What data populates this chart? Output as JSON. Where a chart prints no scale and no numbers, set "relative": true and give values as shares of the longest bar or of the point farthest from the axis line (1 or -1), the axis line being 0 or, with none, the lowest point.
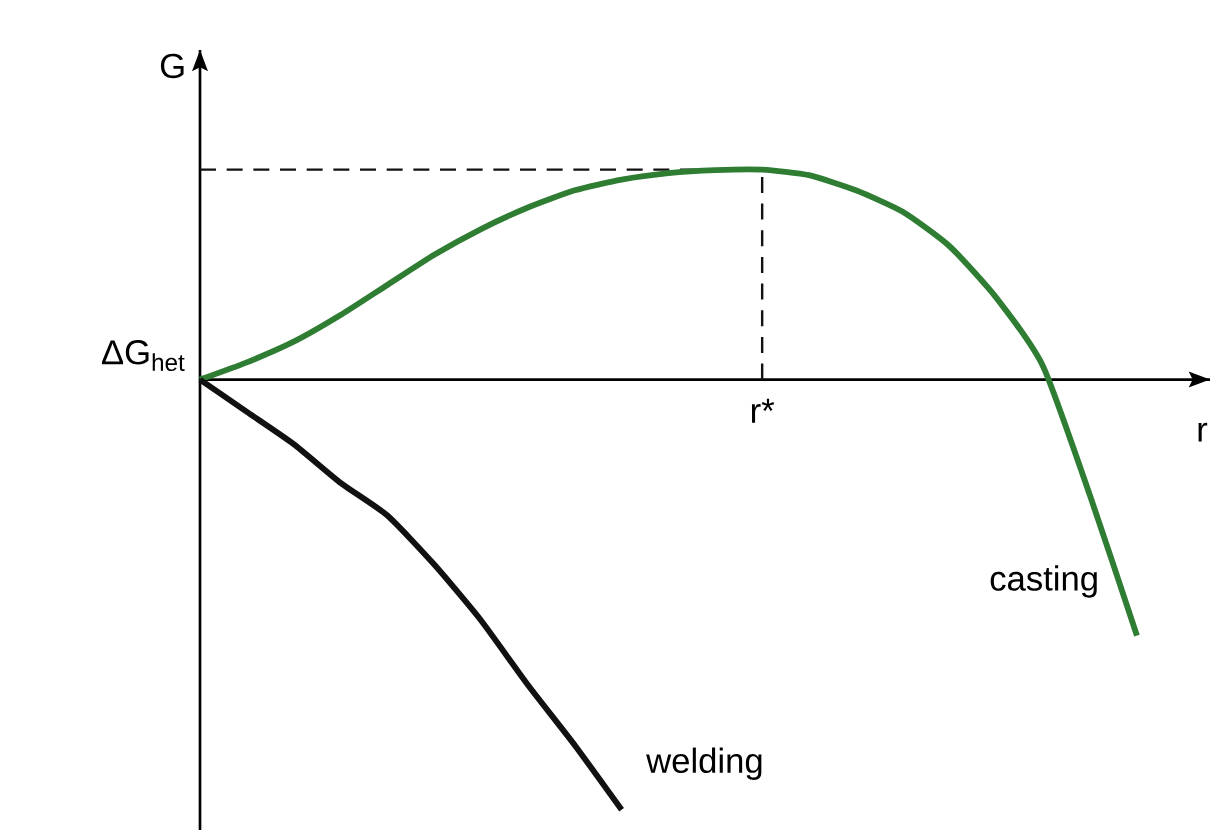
{
  "chart_data": {
    "type": "line",
    "relative": true,
    "xlabel": "r",
    "ylabel": "G",
    "categories": [
      null,
      null,
      null,
      null,
      null,
      null,
      null,
      null,
      null,
      null,
      null,
      null,
      null,
      null,
      null,
      null,
      null,
      null,
      null,
      null,
      null
    ],
    "annotations": [
      "ΔG$_{het}$"
    ],
    "legend": false,
    "marker": "none",
    "line_style": "solid",
    "ref_lines": [
      {
        "axis": "x",
        "value": "r*",
        "line_style": "dashed",
        "color": "#111111"
      },
      {
        "axis": "y",
        "value": 0.488,
        "line_style": "dashed",
        "color": "#111111"
      }
    ],
    "series": [
      {
        "name": "casting",
        "color": "#2e7d32",
        "values": [
          0,
          0.04,
          0.088,
          0.15,
          0.22,
          0.29,
          0.35,
          0.4,
          0.44,
          0.465,
          0.48,
          0.487,
          0.488,
          0.475,
          0.44,
          0.39,
          0.31,
          0.19,
          0.03,
          -0.27,
          -0.595
        ]
      },
      {
        "name": "welding",
        "color": "#111111",
        "values": [
          0,
          -0.075,
          -0.15,
          -0.24,
          -0.316,
          -0.43,
          -0.56,
          -0.71,
          -0.85,
          -1,
          null,
          null,
          null,
          null,
          null,
          null,
          null,
          null,
          null,
          null,
          null
        ]
      }
    ]
  }
}
